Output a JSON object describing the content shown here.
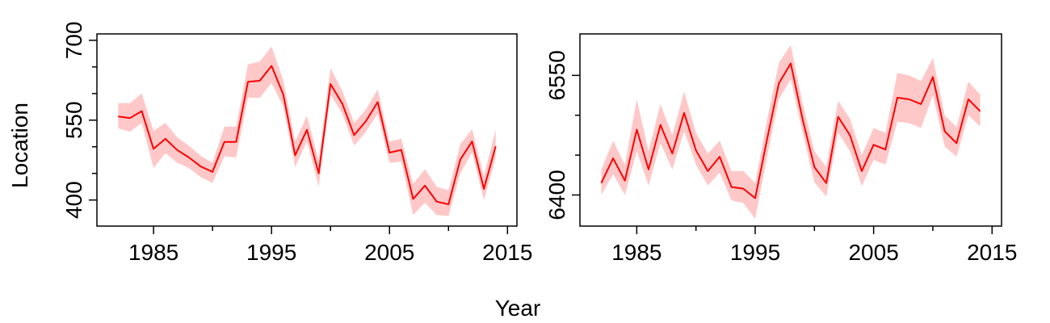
{
  "figure": {
    "xlabel": "Year",
    "ylabel": "Location"
  },
  "chart_data": [
    {
      "type": "line",
      "x": [
        1982,
        1983,
        1984,
        1985,
        1986,
        1987,
        1988,
        1989,
        1990,
        1991,
        1992,
        1993,
        1994,
        1995,
        1996,
        1997,
        1998,
        1999,
        2000,
        2001,
        2002,
        2003,
        2004,
        2005,
        2006,
        2007,
        2008,
        2009,
        2010,
        2011,
        2012,
        2013,
        2014
      ],
      "values": [
        557,
        554,
        567,
        496,
        515,
        494,
        480,
        463,
        453,
        509,
        509,
        622,
        624,
        652,
        598,
        484,
        532,
        450,
        618,
        581,
        522,
        548,
        584,
        489,
        494,
        402,
        427,
        397,
        392,
        476,
        510,
        421,
        501
      ],
      "lower": [
        535,
        528,
        545,
        460,
        488,
        470,
        460,
        443,
        432,
        482,
        480,
        592,
        592,
        620,
        575,
        462,
        510,
        425,
        598,
        562,
        502,
        528,
        562,
        470,
        472,
        372,
        395,
        372,
        370,
        450,
        490,
        400,
        480
      ],
      "upper": [
        582,
        582,
        600,
        530,
        545,
        518,
        502,
        483,
        470,
        538,
        538,
        655,
        660,
        688,
        625,
        510,
        558,
        475,
        648,
        605,
        545,
        570,
        608,
        510,
        515,
        430,
        458,
        425,
        418,
        505,
        533,
        445,
        532
      ],
      "xlim": [
        1980.2,
        2015.8
      ],
      "ylim": [
        351,
        712
      ],
      "xticks": [
        1985,
        1995,
        2005,
        2015
      ],
      "xtick_labels": [
        "1985",
        "1995",
        "2005",
        "2015"
      ],
      "xticks_minor": [
        1990,
        2000,
        2010
      ],
      "yticks": [
        400,
        550,
        700
      ],
      "ytick_labels": [
        "400",
        "550",
        "700"
      ],
      "yticks_minor": [
        450,
        500,
        600,
        650
      ],
      "line_color": "#ff0000",
      "band_color": "#ffc8c8"
    },
    {
      "type": "line",
      "x": [
        1982,
        1983,
        1984,
        1985,
        1986,
        1987,
        1988,
        1989,
        1990,
        1991,
        1992,
        1993,
        1994,
        1995,
        1996,
        1997,
        1998,
        1999,
        2000,
        2001,
        2002,
        2003,
        2004,
        2005,
        2006,
        2007,
        2008,
        2009,
        2010,
        2011,
        2012,
        2013,
        2014
      ],
      "values": [
        6415,
        6446,
        6418,
        6482,
        6432,
        6488,
        6452,
        6503,
        6456,
        6430,
        6448,
        6410,
        6408,
        6396,
        6470,
        6540,
        6565,
        6495,
        6435,
        6415,
        6498,
        6475,
        6430,
        6463,
        6457,
        6522,
        6520,
        6514,
        6548,
        6480,
        6465,
        6520,
        6505
      ],
      "lower": [
        6400,
        6426,
        6400,
        6455,
        6412,
        6465,
        6432,
        6480,
        6438,
        6412,
        6428,
        6393,
        6390,
        6370,
        6448,
        6520,
        6545,
        6478,
        6416,
        6398,
        6478,
        6455,
        6411,
        6444,
        6438,
        6492,
        6490,
        6484,
        6525,
        6461,
        6448,
        6500,
        6486
      ],
      "upper": [
        6432,
        6468,
        6438,
        6520,
        6455,
        6514,
        6475,
        6530,
        6478,
        6452,
        6468,
        6430,
        6430,
        6415,
        6494,
        6566,
        6588,
        6515,
        6455,
        6435,
        6518,
        6496,
        6450,
        6484,
        6478,
        6553,
        6550,
        6543,
        6572,
        6500,
        6485,
        6542,
        6526
      ],
      "xlim": [
        1980.2,
        2015.8
      ],
      "ylim": [
        6361,
        6602
      ],
      "xticks": [
        1985,
        1995,
        2005,
        2015
      ],
      "xtick_labels": [
        "1985",
        "1995",
        "2005",
        "2015"
      ],
      "xticks_minor": [
        1990,
        2000,
        2010
      ],
      "yticks": [
        6400,
        6550
      ],
      "ytick_labels": [
        "6400",
        "6550"
      ],
      "yticks_minor": [
        6450,
        6500
      ],
      "line_color": "#ff0000",
      "band_color": "#ffc8c8"
    }
  ]
}
